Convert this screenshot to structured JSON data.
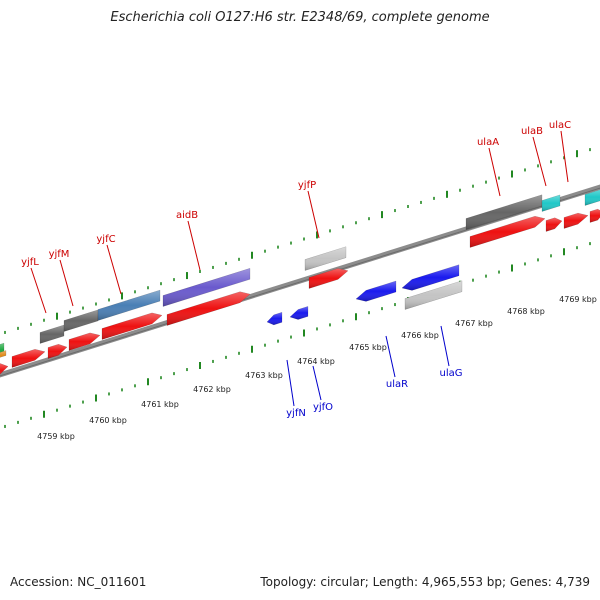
{
  "title": "Escherichia coli O127:H6 str. E2348/69, complete genome",
  "footer": {
    "accession": "Accession: NC_011601",
    "summary": "Topology: circular; Length: 4,965,553 bp; Genes: 4,739"
  },
  "colors": {
    "cds": "#ee1111",
    "dark_gray": "#666666",
    "light_gray": "#c4c4c4",
    "steel_blue": "#4a7fb5",
    "purple": "#6a5acd",
    "blue": "#1a1aee",
    "cyan": "#20c8c8",
    "label_forward": "#cc0000",
    "label_reverse": "#0000cc",
    "tick": "#228822",
    "backbone": "#8c8c8c"
  },
  "scale": {
    "labels": [
      "4759 kbp",
      "4760 kbp",
      "4761 kbp",
      "4762 kbp",
      "4763 kbp",
      "4764 kbp",
      "4765 kbp",
      "4766 kbp",
      "4767 kbp",
      "4768 kbp",
      "4769 kbp"
    ]
  },
  "forward_labels": [
    "yjfL",
    "yjfM",
    "yjfC",
    "aidB",
    "yjfP",
    "ulaA",
    "ulaB",
    "ulaC"
  ],
  "reverse_labels": [
    "yjfN",
    "yjfO",
    "ulaR",
    "ulaG"
  ]
}
